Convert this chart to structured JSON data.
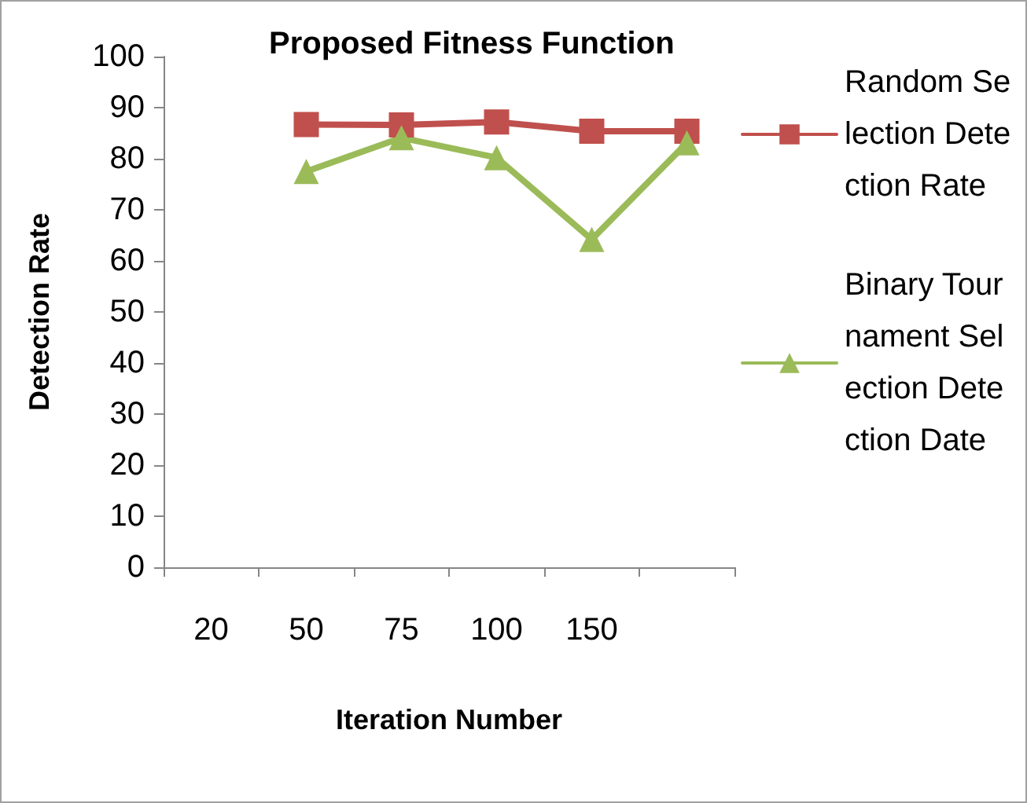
{
  "chart_data": {
    "type": "line",
    "title": "Proposed Fitness Function",
    "xlabel": "Iteration Number",
    "ylabel": "Detection Rate",
    "categories": [
      "20",
      "50",
      "75",
      "100",
      "150",
      null
    ],
    "series": [
      {
        "name": "Random Selection Detection Rate",
        "color": "#c0504d",
        "marker": "square",
        "values": [
          null,
          86.7,
          86.6,
          87.2,
          85.4,
          85.4
        ]
      },
      {
        "name": "Binary Tournament Selection Detection Date",
        "color": "#9bbb59",
        "marker": "triangle",
        "values": [
          null,
          77.5,
          84.1,
          80.2,
          64.2,
          83.1
        ]
      }
    ],
    "ylim": [
      0,
      100
    ],
    "yticks": [
      0,
      10,
      20,
      30,
      40,
      50,
      60,
      70,
      80,
      90,
      100
    ],
    "grid": false,
    "legend": "right",
    "line_style": "solid"
  }
}
